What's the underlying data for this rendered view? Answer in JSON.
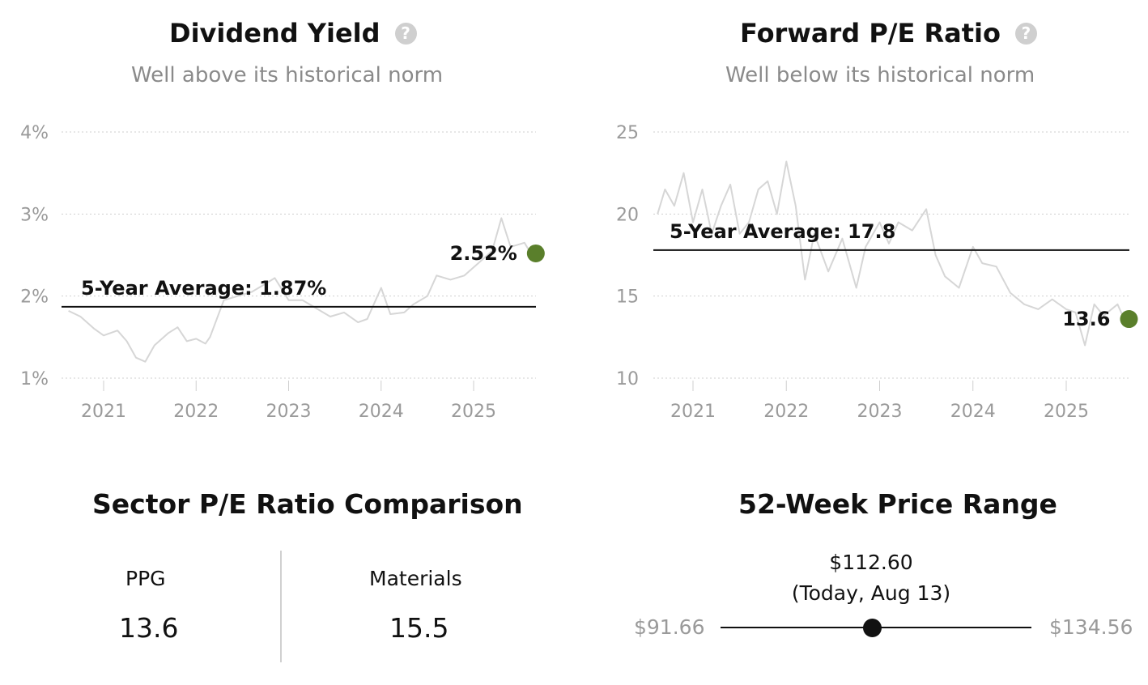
{
  "dividend": {
    "title": "Dividend Yield",
    "help_icon": "question-circle-icon",
    "subtitle": "Well above its historical norm"
  },
  "pe": {
    "title": "Forward P/E Ratio",
    "help_icon": "question-circle-icon",
    "subtitle": "Well below its historical norm"
  },
  "chart_data": [
    {
      "type": "line",
      "title": "Dividend Yield",
      "ylim": [
        1,
        4
      ],
      "y_ticks": [
        "1%",
        "2%",
        "3%",
        "4%"
      ],
      "x_ticks": [
        "2021",
        "2022",
        "2023",
        "2024",
        "2025"
      ],
      "grid": true,
      "series": [
        {
          "x": [
            2020.62,
            2020.75,
            2020.9,
            2021.0,
            2021.15,
            2021.25,
            2021.35,
            2021.45,
            2021.55,
            2021.7,
            2021.8,
            2021.9,
            2022.0,
            2022.1,
            2022.15,
            2022.3,
            2022.45,
            2022.6,
            2022.75,
            2022.85,
            2023.0,
            2023.15,
            2023.3,
            2023.45,
            2023.6,
            2023.75,
            2023.85,
            2024.0,
            2024.1,
            2024.25,
            2024.35,
            2024.5,
            2024.6,
            2024.75,
            2024.9,
            2025.05,
            2025.2,
            2025.3,
            2025.4,
            2025.55,
            2025.62
          ],
          "values": [
            1.82,
            1.75,
            1.6,
            1.52,
            1.58,
            1.45,
            1.25,
            1.2,
            1.4,
            1.55,
            1.62,
            1.45,
            1.48,
            1.42,
            1.5,
            1.95,
            2.0,
            2.05,
            2.15,
            2.22,
            1.95,
            1.95,
            1.85,
            1.75,
            1.8,
            1.68,
            1.72,
            2.1,
            1.78,
            1.8,
            1.9,
            2.0,
            2.25,
            2.2,
            2.25,
            2.4,
            2.55,
            2.95,
            2.6,
            2.65,
            2.52
          ]
        }
      ],
      "average": {
        "label": "5-Year Average: 1.87%",
        "value": 1.87
      },
      "current": {
        "label": "2.52%",
        "value": 2.52
      },
      "colors": {
        "line": "#d6d6d6",
        "current": "#5a7f2b",
        "average": "#111111"
      }
    },
    {
      "type": "line",
      "title": "Forward P/E Ratio",
      "ylim": [
        10,
        25
      ],
      "y_ticks": [
        "10",
        "15",
        "20",
        "25"
      ],
      "x_ticks": [
        "2021",
        "2022",
        "2023",
        "2024",
        "2025"
      ],
      "grid": true,
      "series": [
        {
          "x": [
            2020.62,
            2020.7,
            2020.8,
            2020.9,
            2021.0,
            2021.1,
            2021.2,
            2021.3,
            2021.4,
            2021.5,
            2021.6,
            2021.7,
            2021.8,
            2021.9,
            2022.0,
            2022.1,
            2022.2,
            2022.3,
            2022.45,
            2022.6,
            2022.75,
            2022.85,
            2023.0,
            2023.1,
            2023.2,
            2023.35,
            2023.5,
            2023.6,
            2023.7,
            2023.85,
            2024.0,
            2024.1,
            2024.25,
            2024.4,
            2024.55,
            2024.7,
            2024.85,
            2025.0,
            2025.1,
            2025.2,
            2025.3,
            2025.4,
            2025.55,
            2025.62
          ],
          "values": [
            20.0,
            21.5,
            20.5,
            22.5,
            19.5,
            21.5,
            18.8,
            20.5,
            21.8,
            18.8,
            19.5,
            21.5,
            22.0,
            20.0,
            23.2,
            20.5,
            16.0,
            18.8,
            16.5,
            18.5,
            15.5,
            18.0,
            19.5,
            18.2,
            19.5,
            19.0,
            20.3,
            17.5,
            16.2,
            15.5,
            18.0,
            17.0,
            16.8,
            15.2,
            14.5,
            14.2,
            14.8,
            14.2,
            14.0,
            12.0,
            14.5,
            13.8,
            14.5,
            13.6
          ]
        }
      ],
      "average": {
        "label": "5-Year Average: 17.8",
        "value": 17.8
      },
      "current": {
        "label": "13.6",
        "value": 13.6
      },
      "colors": {
        "line": "#d6d6d6",
        "current": "#5a7f2b",
        "average": "#111111"
      }
    }
  ],
  "sector": {
    "title": "Sector P/E Ratio Comparison",
    "left": {
      "name": "PPG",
      "value": "13.6"
    },
    "right": {
      "name": "Materials",
      "value": "15.5"
    }
  },
  "range52": {
    "title": "52-Week Price Range",
    "current_price": "$112.60",
    "current_note": "(Today, Aug 13)",
    "low": "$91.66",
    "high": "$134.56",
    "low_value": 91.66,
    "high_value": 134.56,
    "current_value": 112.6
  }
}
